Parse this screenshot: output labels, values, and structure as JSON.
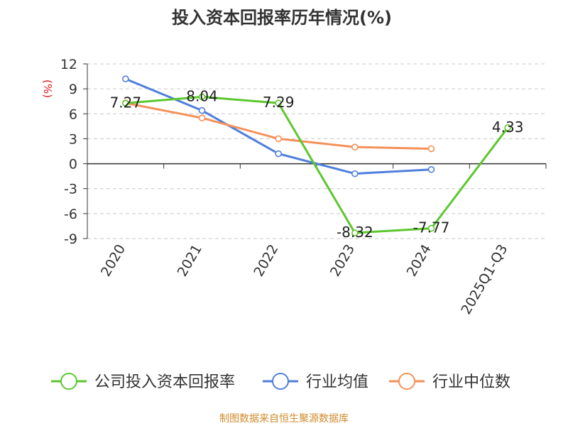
{
  "chart_data": {
    "type": "line",
    "title": "投入资本回报率历年情况(%)",
    "ylabel": "(%)",
    "xlabel": "",
    "categories": [
      "2020",
      "2021",
      "2022",
      "2023",
      "2024",
      "2025Q1-Q3"
    ],
    "y_ticks": [
      12,
      9,
      6,
      3,
      0,
      -3,
      -6,
      -9
    ],
    "ylim": [
      -9,
      12
    ],
    "grid": "horizontal dashed",
    "legend_position": "bottom",
    "series": [
      {
        "name": "公司投入资本回报率",
        "color": "#5cc72e",
        "values": [
          7.27,
          8.04,
          7.29,
          -8.32,
          -7.77,
          4.33
        ],
        "labels": [
          "7.27",
          "8.04",
          "7.29",
          "-8.32",
          "-7.77",
          "4.33"
        ]
      },
      {
        "name": "行业均值",
        "color": "#4f7fdc",
        "values": [
          10.2,
          6.4,
          1.2,
          -1.2,
          -0.7,
          null
        ]
      },
      {
        "name": "行业中位数",
        "color": "#f49159",
        "values": [
          7.3,
          5.5,
          3.0,
          2.0,
          1.8,
          null
        ]
      }
    ],
    "source": "制图数据来自恒生聚源数据库",
    "source_color": "#d08a2a",
    "ylabel_color": "#e0151b"
  }
}
